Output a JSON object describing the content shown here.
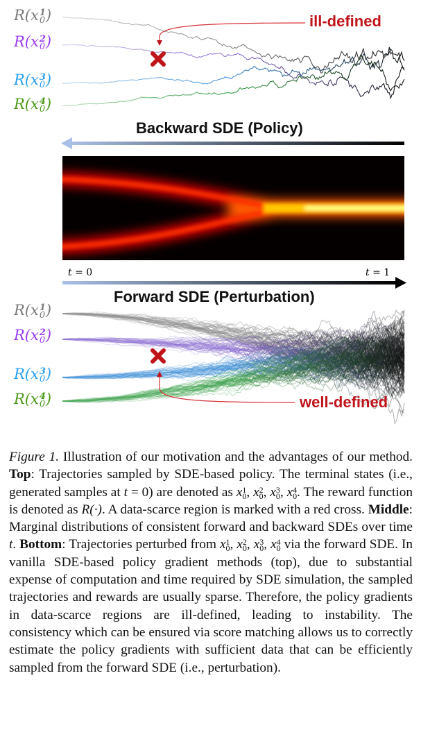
{
  "figure": {
    "top_labels": [
      "R(x",
      "R(x",
      "R(x",
      "R(x"
    ],
    "label_superscripts": [
      "1",
      "2",
      "3",
      "4"
    ],
    "label_subscript": "0",
    "label_close": ")",
    "label_colors": [
      "#7a7a7a",
      "#9b3cf0",
      "#2aa0f0",
      "#4c9a1a"
    ],
    "trajectory_colors": [
      "#888888",
      "#8c6fd0",
      "#3f8fd6",
      "#3aa04a"
    ],
    "ill_defined": "ill-defined",
    "well_defined": "well-defined",
    "annotation_color": "#c0141b",
    "backward_label": "Backward SDE (Policy)",
    "forward_label": "Forward SDE (Perturbation)",
    "t0_label": "t = 0",
    "t1_label": "t = 1",
    "t_var": "t",
    "t0_rhs": " = 0",
    "t1_rhs": " = 1"
  },
  "caption": {
    "figure_label": "Figure 1.",
    "s1": " Illustration of our motivation and the advantages of our method. ",
    "top": "Top",
    "s2": ": Trajectories sampled by SDE-based policy. The terminal states (i.e., generated samples at ",
    "t": "t",
    "s3": " = 0) are denoted as ",
    "s4": ". The reward function is denoted as ",
    "reward": "R(·)",
    "s5": ". A data-scarce region is marked with a red cross. ",
    "middle": "Middle",
    "s6": ": Marginal distributions of consistent forward and backward SDEs over time ",
    "s7": ". ",
    "bottom": "Bottom",
    "s8": ": Trajectories perturbed from ",
    "s9": " via the forward SDE. In vanilla SDE-based policy gradient methods (top), due to substantial expense of computation and time required by SDE simulation, the sampled trajectories and rewards are usually sparse. Therefore, the policy gradients in data-scarce regions are ill-defined, leading to instability. The consistency which can be ensured via score matching allows us to correctly estimate the policy gradients with sufficient data that can be efficiently sampled from the forward SDE (i.e., perturbation).",
    "x": "x"
  }
}
